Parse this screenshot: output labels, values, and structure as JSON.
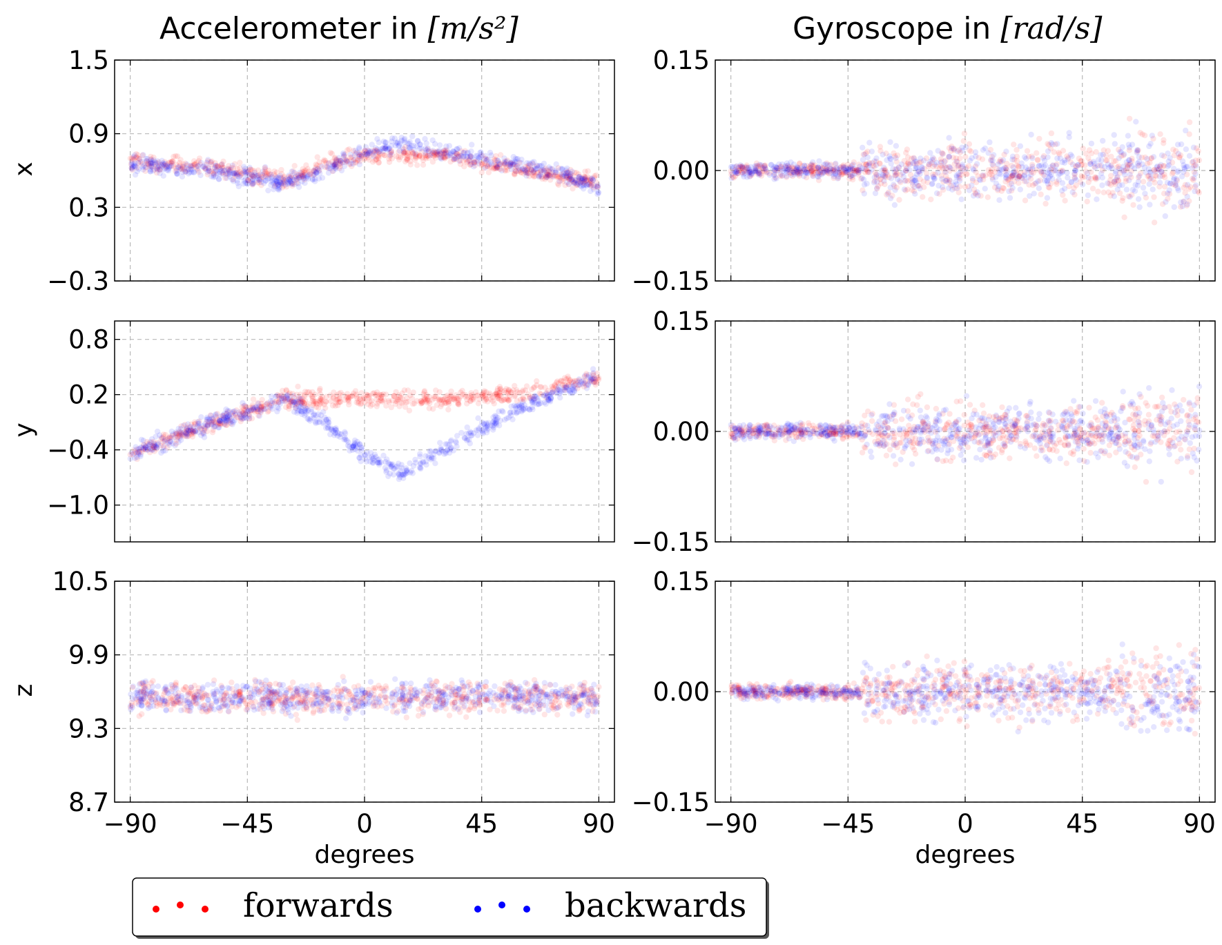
{
  "figure": {
    "col_titles": [
      {
        "text": "Accelerometer in ",
        "math": "[m/s²]"
      },
      {
        "text": "Gyroscope in ",
        "math": "[rad/s]"
      }
    ],
    "row_labels": [
      "x",
      "y",
      "z"
    ],
    "xlabel": "degrees",
    "legend": {
      "placement": "bottom-left",
      "items": [
        {
          "label": "forwards",
          "color": "#ff0000"
        },
        {
          "label": "backwards",
          "color": "#0000ff"
        }
      ]
    }
  },
  "chart_data": [
    {
      "type": "scatter",
      "panel": "accel-x",
      "ylim": [
        -0.3,
        1.5
      ],
      "yticks": [
        "1.5",
        "0.9",
        "0.3",
        "−0.3"
      ],
      "ytick_values": [
        1.5,
        0.9,
        0.3,
        -0.3
      ],
      "series": [
        {
          "name": "forwards",
          "color": "#ff0000",
          "x": [
            -90,
            -60,
            -30,
            -15,
            0,
            30,
            60,
            90
          ],
          "y": [
            0.68,
            0.62,
            0.52,
            0.65,
            0.72,
            0.72,
            0.62,
            0.5
          ]
        },
        {
          "name": "backwards",
          "color": "#0000ff",
          "x": [
            -90,
            -60,
            -30,
            -15,
            0,
            15,
            45,
            75,
            90
          ],
          "y": [
            0.65,
            0.6,
            0.5,
            0.6,
            0.75,
            0.82,
            0.7,
            0.58,
            0.45
          ]
        }
      ]
    },
    {
      "type": "scatter",
      "panel": "gyro-x",
      "ylim": [
        -0.15,
        0.15
      ],
      "yticks": [
        "0.15",
        "0.00",
        "−0.15"
      ],
      "ytick_values": [
        0.15,
        0.0,
        -0.15
      ],
      "series": [
        {
          "name": "forwards",
          "color": "#ff0000",
          "x": [
            -90,
            -45,
            0,
            45,
            90
          ],
          "y": [
            0.0,
            0.0,
            0.0,
            0.0,
            0.0
          ]
        },
        {
          "name": "backwards",
          "color": "#0000ff",
          "x": [
            -90,
            -45,
            0,
            45,
            90
          ],
          "y": [
            0.0,
            0.0,
            0.0,
            0.0,
            0.0
          ]
        }
      ]
    },
    {
      "type": "scatter",
      "panel": "accel-y",
      "ylim": [
        -1.4,
        1.0
      ],
      "yticks": [
        "0.8",
        "0.2",
        "−0.4",
        "−1.0"
      ],
      "ytick_values": [
        0.8,
        0.2,
        -0.4,
        -1.0
      ],
      "series": [
        {
          "name": "forwards",
          "color": "#ff0000",
          "x": [
            -90,
            -60,
            -30,
            0,
            30,
            60,
            90
          ],
          "y": [
            -0.45,
            -0.12,
            0.15,
            0.16,
            0.14,
            0.22,
            0.38
          ]
        },
        {
          "name": "backwards",
          "color": "#0000ff",
          "x": [
            -90,
            -60,
            -30,
            -15,
            0,
            15,
            30,
            60,
            90
          ],
          "y": [
            -0.45,
            -0.12,
            0.15,
            -0.1,
            -0.45,
            -0.65,
            -0.4,
            0.05,
            0.4
          ]
        }
      ]
    },
    {
      "type": "scatter",
      "panel": "gyro-y",
      "ylim": [
        -0.15,
        0.15
      ],
      "yticks": [
        "0.15",
        "0.00",
        "−0.15"
      ],
      "ytick_values": [
        0.15,
        0.0,
        -0.15
      ],
      "series": [
        {
          "name": "forwards",
          "color": "#ff0000",
          "x": [
            -90,
            -45,
            0,
            45,
            90
          ],
          "y": [
            0.0,
            0.0,
            0.0,
            0.0,
            0.0
          ]
        },
        {
          "name": "backwards",
          "color": "#0000ff",
          "x": [
            -90,
            -45,
            0,
            45,
            90
          ],
          "y": [
            0.0,
            0.0,
            0.0,
            0.0,
            0.0
          ]
        }
      ]
    },
    {
      "type": "scatter",
      "panel": "accel-z",
      "ylim": [
        8.7,
        10.5
      ],
      "yticks": [
        "10.5",
        "9.9",
        "9.3",
        "8.7"
      ],
      "ytick_values": [
        10.5,
        9.9,
        9.3,
        8.7
      ],
      "series": [
        {
          "name": "forwards",
          "color": "#ff0000",
          "x": [
            -90,
            -45,
            0,
            45,
            90
          ],
          "y": [
            9.55,
            9.55,
            9.55,
            9.56,
            9.55
          ]
        },
        {
          "name": "backwards",
          "color": "#0000ff",
          "x": [
            -90,
            -45,
            0,
            45,
            90
          ],
          "y": [
            9.55,
            9.56,
            9.55,
            9.57,
            9.55
          ]
        }
      ]
    },
    {
      "type": "scatter",
      "panel": "gyro-z",
      "ylim": [
        -0.15,
        0.15
      ],
      "yticks": [
        "0.15",
        "0.00",
        "−0.15"
      ],
      "ytick_values": [
        0.15,
        0.0,
        -0.15
      ],
      "series": [
        {
          "name": "forwards",
          "color": "#ff0000",
          "x": [
            -90,
            -45,
            0,
            45,
            90
          ],
          "y": [
            0.0,
            0.0,
            0.0,
            0.0,
            0.0
          ]
        },
        {
          "name": "backwards",
          "color": "#0000ff",
          "x": [
            -90,
            -45,
            0,
            45,
            90
          ],
          "y": [
            0.0,
            0.0,
            0.0,
            0.0,
            0.0
          ]
        }
      ]
    }
  ],
  "xaxis": {
    "ticks": [
      "−90",
      "−45",
      "0",
      "45",
      "90"
    ],
    "tick_values": [
      -90,
      -45,
      0,
      45,
      90
    ],
    "xlim": [
      -96,
      96
    ],
    "grid": true
  }
}
